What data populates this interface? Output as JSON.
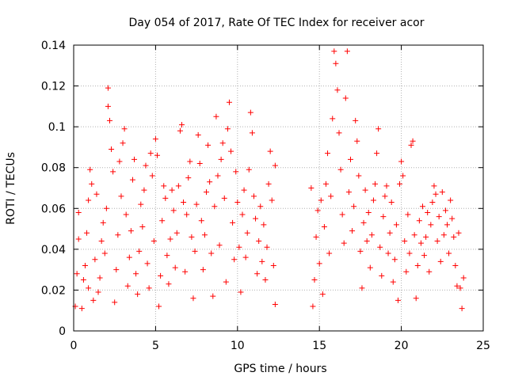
{
  "chart_data": {
    "type": "scatter",
    "title": "Day 054 of 2017, Rate Of TEC Index for receiver acor",
    "xlabel": "GPS time / hours",
    "ylabel": "ROTI / TECUs",
    "xlim": [
      0,
      25
    ],
    "ylim": [
      0,
      0.14
    ],
    "xticks": [
      0,
      5,
      10,
      15,
      20,
      25
    ],
    "yticks": [
      0,
      0.02,
      0.04,
      0.06,
      0.08,
      0.1,
      0.12,
      0.14
    ],
    "xtick_labels": [
      "0",
      "5",
      "10",
      "15",
      "20",
      "25"
    ],
    "ytick_labels": [
      "0",
      "0.02",
      "0.04",
      "0.06",
      "0.08",
      "0.1",
      "0.12",
      "0.14"
    ],
    "grid": true,
    "legend": "none",
    "marker": "+",
    "colors": {
      "series": "#ff0000",
      "grid": "#b0b0b0",
      "axis": "#000000"
    },
    "series": [
      {
        "values": [
          [
            0.1,
            0.012
          ],
          [
            0.2,
            0.028
          ],
          [
            0.3,
            0.045
          ],
          [
            0.3,
            0.058
          ],
          [
            0.5,
            0.011
          ],
          [
            0.6,
            0.025
          ],
          [
            0.7,
            0.032
          ],
          [
            0.8,
            0.048
          ],
          [
            0.9,
            0.021
          ],
          [
            0.9,
            0.064
          ],
          [
            1.0,
            0.079
          ],
          [
            1.1,
            0.072
          ],
          [
            1.2,
            0.015
          ],
          [
            1.3,
            0.035
          ],
          [
            1.4,
            0.067
          ],
          [
            1.5,
            0.019
          ],
          [
            1.6,
            0.026
          ],
          [
            1.7,
            0.044
          ],
          [
            1.8,
            0.053
          ],
          [
            1.9,
            0.038
          ],
          [
            2.0,
            0.06
          ],
          [
            2.1,
            0.11
          ],
          [
            2.1,
            0.119
          ],
          [
            2.2,
            0.103
          ],
          [
            2.3,
            0.089
          ],
          [
            2.4,
            0.078
          ],
          [
            2.5,
            0.014
          ],
          [
            2.6,
            0.03
          ],
          [
            2.7,
            0.047
          ],
          [
            2.8,
            0.083
          ],
          [
            2.9,
            0.066
          ],
          [
            3.0,
            0.092
          ],
          [
            3.1,
            0.099
          ],
          [
            3.2,
            0.057
          ],
          [
            3.3,
            0.022
          ],
          [
            3.4,
            0.036
          ],
          [
            3.5,
            0.049
          ],
          [
            3.6,
            0.074
          ],
          [
            3.7,
            0.084
          ],
          [
            3.8,
            0.028
          ],
          [
            3.9,
            0.018
          ],
          [
            4.0,
            0.039
          ],
          [
            4.1,
            0.062
          ],
          [
            4.2,
            0.051
          ],
          [
            4.3,
            0.069
          ],
          [
            4.4,
            0.081
          ],
          [
            4.5,
            0.033
          ],
          [
            4.6,
            0.021
          ],
          [
            4.7,
            0.087
          ],
          [
            4.8,
            0.076
          ],
          [
            4.9,
            0.044
          ],
          [
            5.0,
            0.094
          ],
          [
            5.1,
            0.086
          ],
          [
            5.2,
            0.012
          ],
          [
            5.3,
            0.027
          ],
          [
            5.4,
            0.054
          ],
          [
            5.5,
            0.071
          ],
          [
            5.6,
            0.065
          ],
          [
            5.7,
            0.037
          ],
          [
            5.8,
            0.023
          ],
          [
            5.9,
            0.045
          ],
          [
            6.0,
            0.069
          ],
          [
            6.1,
            0.059
          ],
          [
            6.2,
            0.031
          ],
          [
            6.3,
            0.048
          ],
          [
            6.4,
            0.071
          ],
          [
            6.5,
            0.098
          ],
          [
            6.6,
            0.101
          ],
          [
            6.7,
            0.063
          ],
          [
            6.8,
            0.029
          ],
          [
            6.9,
            0.057
          ],
          [
            7.0,
            0.075
          ],
          [
            7.1,
            0.083
          ],
          [
            7.2,
            0.046
          ],
          [
            7.3,
            0.016
          ],
          [
            7.4,
            0.039
          ],
          [
            7.5,
            0.062
          ],
          [
            7.6,
            0.096
          ],
          [
            7.7,
            0.082
          ],
          [
            7.8,
            0.054
          ],
          [
            7.9,
            0.03
          ],
          [
            8.0,
            0.047
          ],
          [
            8.1,
            0.068
          ],
          [
            8.2,
            0.091
          ],
          [
            8.3,
            0.073
          ],
          [
            8.4,
            0.038
          ],
          [
            8.5,
            0.017
          ],
          [
            8.6,
            0.061
          ],
          [
            8.7,
            0.105
          ],
          [
            8.8,
            0.076
          ],
          [
            8.9,
            0.042
          ],
          [
            9.0,
            0.084
          ],
          [
            9.1,
            0.092
          ],
          [
            9.2,
            0.065
          ],
          [
            9.3,
            0.024
          ],
          [
            9.4,
            0.099
          ],
          [
            9.5,
            0.112
          ],
          [
            9.6,
            0.088
          ],
          [
            9.7,
            0.053
          ],
          [
            9.8,
            0.035
          ],
          [
            9.9,
            0.078
          ],
          [
            10.0,
            0.063
          ],
          [
            10.1,
            0.041
          ],
          [
            10.2,
            0.019
          ],
          [
            10.3,
            0.057
          ],
          [
            10.4,
            0.069
          ],
          [
            10.5,
            0.036
          ],
          [
            10.6,
            0.048
          ],
          [
            10.7,
            0.079
          ],
          [
            10.8,
            0.107
          ],
          [
            10.9,
            0.097
          ],
          [
            11.0,
            0.066
          ],
          [
            11.1,
            0.055
          ],
          [
            11.2,
            0.028
          ],
          [
            11.3,
            0.044
          ],
          [
            11.4,
            0.061
          ],
          [
            11.5,
            0.034
          ],
          [
            11.6,
            0.052
          ],
          [
            11.7,
            0.025
          ],
          [
            11.8,
            0.041
          ],
          [
            11.9,
            0.072
          ],
          [
            12.0,
            0.088
          ],
          [
            12.1,
            0.064
          ],
          [
            12.2,
            0.032
          ],
          [
            12.3,
            0.013
          ],
          [
            12.3,
            0.081
          ],
          [
            14.5,
            0.07
          ],
          [
            14.6,
            0.012
          ],
          [
            14.7,
            0.025
          ],
          [
            14.8,
            0.046
          ],
          [
            14.9,
            0.059
          ],
          [
            15.0,
            0.033
          ],
          [
            15.1,
            0.064
          ],
          [
            15.2,
            0.018
          ],
          [
            15.3,
            0.051
          ],
          [
            15.4,
            0.072
          ],
          [
            15.5,
            0.087
          ],
          [
            15.6,
            0.038
          ],
          [
            15.7,
            0.066
          ],
          [
            15.8,
            0.104
          ],
          [
            15.9,
            0.137
          ],
          [
            16.0,
            0.131
          ],
          [
            16.1,
            0.118
          ],
          [
            16.2,
            0.097
          ],
          [
            16.3,
            0.079
          ],
          [
            16.4,
            0.057
          ],
          [
            16.5,
            0.043
          ],
          [
            16.6,
            0.114
          ],
          [
            16.7,
            0.137
          ],
          [
            16.8,
            0.068
          ],
          [
            16.9,
            0.084
          ],
          [
            17.0,
            0.049
          ],
          [
            17.1,
            0.061
          ],
          [
            17.2,
            0.103
          ],
          [
            17.3,
            0.093
          ],
          [
            17.4,
            0.076
          ],
          [
            17.5,
            0.039
          ],
          [
            17.6,
            0.021
          ],
          [
            17.7,
            0.053
          ],
          [
            17.8,
            0.069
          ],
          [
            17.9,
            0.044
          ],
          [
            18.0,
            0.058
          ],
          [
            18.1,
            0.031
          ],
          [
            18.2,
            0.047
          ],
          [
            18.3,
            0.064
          ],
          [
            18.4,
            0.072
          ],
          [
            18.5,
            0.087
          ],
          [
            18.6,
            0.099
          ],
          [
            18.7,
            0.041
          ],
          [
            18.8,
            0.027
          ],
          [
            18.9,
            0.056
          ],
          [
            19.0,
            0.066
          ],
          [
            19.1,
            0.071
          ],
          [
            19.2,
            0.038
          ],
          [
            19.3,
            0.048
          ],
          [
            19.4,
            0.063
          ],
          [
            19.5,
            0.024
          ],
          [
            19.6,
            0.035
          ],
          [
            19.7,
            0.052
          ],
          [
            19.8,
            0.015
          ],
          [
            19.9,
            0.072
          ],
          [
            20.0,
            0.083
          ],
          [
            20.1,
            0.076
          ],
          [
            20.2,
            0.044
          ],
          [
            20.3,
            0.029
          ],
          [
            20.4,
            0.057
          ],
          [
            20.5,
            0.038
          ],
          [
            20.6,
            0.091
          ],
          [
            20.7,
            0.093
          ],
          [
            20.8,
            0.047
          ],
          [
            20.9,
            0.016
          ],
          [
            21.0,
            0.032
          ],
          [
            21.1,
            0.054
          ],
          [
            21.2,
            0.043
          ],
          [
            21.3,
            0.061
          ],
          [
            21.4,
            0.037
          ],
          [
            21.5,
            0.046
          ],
          [
            21.6,
            0.058
          ],
          [
            21.7,
            0.029
          ],
          [
            21.8,
            0.052
          ],
          [
            21.9,
            0.063
          ],
          [
            22.0,
            0.071
          ],
          [
            22.1,
            0.067
          ],
          [
            22.2,
            0.044
          ],
          [
            22.3,
            0.056
          ],
          [
            22.4,
            0.034
          ],
          [
            22.5,
            0.068
          ],
          [
            22.6,
            0.047
          ],
          [
            22.7,
            0.059
          ],
          [
            22.8,
            0.052
          ],
          [
            22.9,
            0.038
          ],
          [
            23.0,
            0.064
          ],
          [
            23.1,
            0.055
          ],
          [
            23.2,
            0.046
          ],
          [
            23.3,
            0.032
          ],
          [
            23.4,
            0.022
          ],
          [
            23.5,
            0.048
          ],
          [
            23.6,
            0.021
          ],
          [
            23.7,
            0.011
          ],
          [
            23.8,
            0.026
          ]
        ]
      }
    ]
  }
}
